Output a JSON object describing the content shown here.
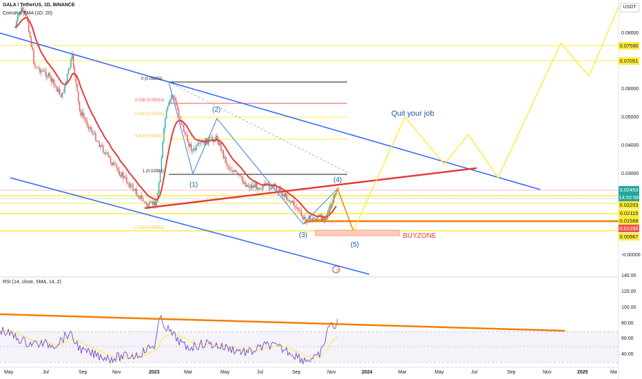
{
  "header": {
    "symbol": "GALA / TetherUS, 1D, BINANCE",
    "indicator": "CoinsKid EMA (1D, 20)",
    "currency": "USDT"
  },
  "annotations": {
    "quit": "Quit your job",
    "buyzone": "BUYZONE",
    "waves": [
      "(1)",
      "(2)",
      "(3)",
      "(4)",
      "(5)"
    ],
    "fib": [
      "0 (0.06293)",
      "0.236 (0.05514)",
      "0.382 (0.05031)",
      "0.618 (0.04253)",
      "1 (0.02991)",
      "1.618 (0.00951)"
    ]
  },
  "price_axis": {
    "ticks": [
      "0.08000",
      "0.06000",
      "0.05000",
      "0.04000",
      "0.03000",
      "-0.00000"
    ],
    "labels": [
      {
        "text": "0.07590",
        "kind": "yellow"
      },
      {
        "text": "0.07051",
        "kind": "yellow"
      },
      {
        "text": "0.02453",
        "kind": "green"
      },
      {
        "text": "14:52:56",
        "kind": "green"
      },
      {
        "text": "0.02203",
        "kind": "yellow"
      },
      {
        "text": "0.02115",
        "kind": "yellow"
      },
      {
        "text": "0.01568",
        "kind": "yellow"
      },
      {
        "text": "0.01293",
        "kind": "red"
      },
      {
        "text": "0.00967",
        "kind": "yellow"
      }
    ]
  },
  "rsi": {
    "title": "RSI (14, close, SMA, 14, 2)",
    "ticks": [
      "140.00",
      "120.00",
      "100.00",
      "80.00",
      "60.00",
      "40.00"
    ]
  },
  "time_axis": [
    "May",
    "Jul",
    "Sep",
    "Nov",
    "2023",
    "Mar",
    "May",
    "Jul",
    "Sep",
    "Nov",
    "2024",
    "Mar",
    "May",
    "Jul",
    "Sep",
    "Nov",
    "2025",
    "Ma"
  ],
  "colors": {
    "blue": "#2962ff",
    "red": "#e53935",
    "yellow": "#ffeb3b",
    "orange": "#f57c00",
    "candle_up": "#26a69a",
    "candle_down": "#ef5350",
    "rsi_line": "#7e57c2"
  }
}
